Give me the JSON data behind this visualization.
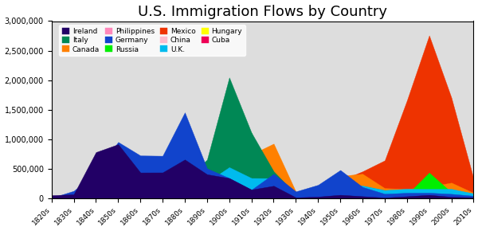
{
  "title": "U.S. Immigration Flows by Country",
  "decades": [
    "1820s",
    "1830s",
    "1840s",
    "1850s",
    "1860s",
    "1870s",
    "1880s",
    "1890s",
    "1900s",
    "1910s",
    "1920s",
    "1930s",
    "1940s",
    "1950s",
    "1960s",
    "1970s",
    "1980s",
    "1990s",
    "2000s",
    "2010s"
  ],
  "series": [
    {
      "label": "China",
      "color": "#FFBBCC",
      "values": [
        0,
        0,
        0,
        42000,
        65000,
        124000,
        61000,
        15000,
        21000,
        22000,
        30000,
        5000,
        16000,
        25000,
        109000,
        124000,
        346000,
        529000,
        524000,
        330000
      ]
    },
    {
      "label": "Philippines",
      "color": "#FF88BB",
      "values": [
        0,
        0,
        0,
        0,
        0,
        0,
        0,
        0,
        0,
        0,
        0,
        0,
        0,
        19000,
        98000,
        355000,
        549000,
        503000,
        545000,
        200000
      ]
    },
    {
      "label": "Cuba",
      "color": "#EE0055",
      "values": [
        0,
        0,
        0,
        0,
        0,
        0,
        0,
        0,
        0,
        0,
        14000,
        10000,
        26000,
        73000,
        208000,
        265000,
        144000,
        169000,
        68000,
        30000
      ]
    },
    {
      "label": "Mexico",
      "color": "#EE3300",
      "values": [
        0,
        5000,
        3000,
        3000,
        2000,
        5000,
        1000,
        1000,
        50000,
        219000,
        459000,
        33000,
        61000,
        299000,
        454000,
        640000,
        1656000,
        2757000,
        1704000,
        330000
      ]
    },
    {
      "label": "Canada",
      "color": "#FF8000",
      "values": [
        2000,
        13000,
        41000,
        59000,
        153000,
        383000,
        393000,
        3000,
        179000,
        742000,
        924000,
        109000,
        171000,
        377000,
        413000,
        170000,
        156000,
        194000,
        263000,
        90000
      ]
    },
    {
      "label": "Hungary",
      "color": "#FFFF00",
      "values": [
        0,
        0,
        0,
        1000,
        2000,
        11000,
        76000,
        181000,
        808000,
        442000,
        63000,
        7000,
        3000,
        36000,
        5000,
        6000,
        6000,
        8000,
        8000,
        5000
      ]
    },
    {
      "label": "Russia",
      "color": "#00EE00",
      "values": [
        0,
        0,
        1000,
        1000,
        2000,
        39000,
        213000,
        505000,
        1597000,
        1106000,
        62000,
        1000,
        0,
        0,
        45000,
        39000,
        57000,
        433000,
        100000,
        80000
      ]
    },
    {
      "label": "Italy",
      "color": "#008855",
      "values": [
        0,
        1000,
        2000,
        9000,
        12000,
        55000,
        307000,
        652000,
        2045000,
        1110000,
        455000,
        68000,
        57000,
        185000,
        207000,
        130000,
        67000,
        67000,
        20000,
        15000
      ]
    },
    {
      "label": "U.K.",
      "color": "#00BBEE",
      "values": [
        5000,
        75000,
        267000,
        424000,
        606000,
        548000,
        807000,
        272000,
        525000,
        341000,
        339000,
        31000,
        131000,
        202000,
        213000,
        137000,
        159000,
        156000,
        158000,
        80000
      ]
    },
    {
      "label": "Germany",
      "color": "#1144CC",
      "values": [
        6000,
        124000,
        434000,
        952000,
        723000,
        718000,
        1453000,
        505000,
        341000,
        144000,
        412000,
        114000,
        226000,
        477000,
        190000,
        74000,
        91000,
        92000,
        73000,
        40000
      ]
    },
    {
      "label": "Ireland",
      "color": "#220066",
      "values": [
        50000,
        65000,
        780000,
        914000,
        435000,
        436000,
        655000,
        405000,
        340000,
        146000,
        210000,
        13000,
        26000,
        57000,
        33000,
        11000,
        32000,
        56000,
        23000,
        15000
      ]
    }
  ],
  "ylim": [
    0,
    3000000
  ],
  "yticks": [
    0,
    500000,
    1000000,
    1500000,
    2000000,
    2500000,
    3000000
  ],
  "ytick_labels": [
    "0",
    "500,000",
    "1,000,000",
    "1,500,000",
    "2,000,000",
    "2,500,000",
    "3,000,000"
  ],
  "bg_color": "#DDDDDD",
  "title_fontsize": 13
}
